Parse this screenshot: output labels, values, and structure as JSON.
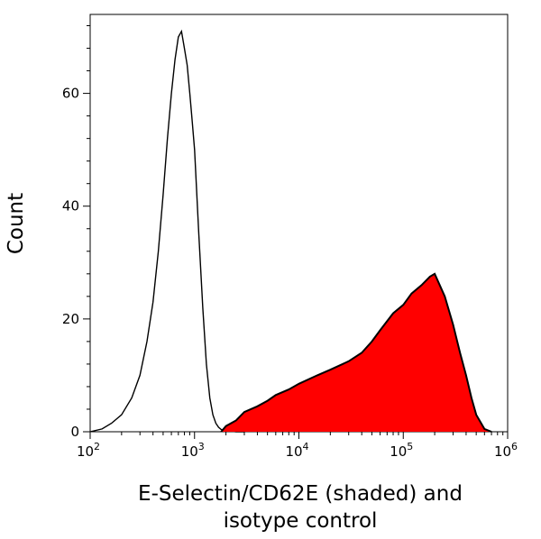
{
  "chart_data": {
    "type": "area",
    "ylabel": "Count",
    "xlabel_lines": [
      "E-Selectin/CD62E (shaded) and",
      "isotype control"
    ],
    "x_scale": "log",
    "xlim": [
      100,
      1000000
    ],
    "ylim": [
      0,
      74
    ],
    "x_ticks": [
      {
        "value": 100,
        "base": "10",
        "exp": "2"
      },
      {
        "value": 1000,
        "base": "10",
        "exp": "3"
      },
      {
        "value": 10000,
        "base": "10",
        "exp": "4"
      },
      {
        "value": 100000,
        "base": "10",
        "exp": "5"
      },
      {
        "value": 1000000,
        "base": "10",
        "exp": "6"
      }
    ],
    "y_ticks": [
      0,
      20,
      40,
      60
    ],
    "grid": false,
    "colors": {
      "shaded_fill": "#ff0000",
      "line": "#000000"
    },
    "series": [
      {
        "style": "outline",
        "x": [
          100,
          130,
          160,
          200,
          250,
          300,
          350,
          400,
          450,
          500,
          550,
          600,
          650,
          700,
          750,
          800,
          850,
          900,
          950,
          1000,
          1100,
          1200,
          1300,
          1400,
          1500,
          1600,
          1700,
          1800,
          2000,
          2500,
          3000
        ],
        "y": [
          0,
          0.5,
          1.5,
          3,
          6,
          10,
          16,
          23,
          32,
          42,
          52,
          60,
          66,
          70,
          71,
          68,
          65,
          60,
          55,
          50,
          35,
          22,
          12,
          6,
          3,
          1.5,
          0.8,
          0.4,
          0.2,
          0,
          0
        ]
      },
      {
        "style": "shaded",
        "x": [
          1800,
          2000,
          2500,
          3000,
          4000,
          5000,
          6000,
          8000,
          10000,
          15000,
          20000,
          30000,
          40000,
          50000,
          60000,
          80000,
          100000,
          120000,
          150000,
          180000,
          200000,
          250000,
          300000,
          350000,
          400000,
          450000,
          500000,
          600000,
          700000
        ],
        "y": [
          0,
          1,
          2,
          3.5,
          4.5,
          5.5,
          6.5,
          7.5,
          8.5,
          10,
          11,
          12.5,
          14,
          16,
          18,
          21,
          22.5,
          24.5,
          26,
          27.5,
          28,
          24,
          19,
          14,
          10,
          6,
          3,
          0.5,
          0
        ]
      }
    ]
  }
}
